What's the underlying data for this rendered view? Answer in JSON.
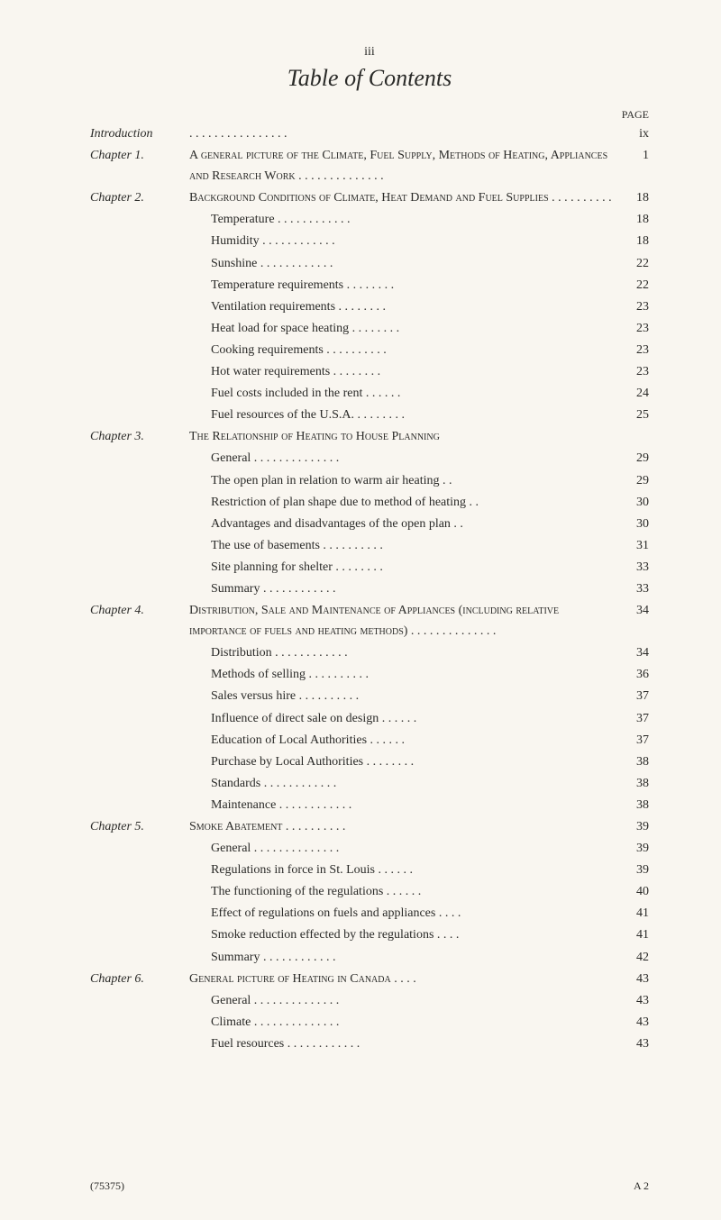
{
  "header": {
    "roman": "iii",
    "title": "Table of Contents",
    "page_label": "PAGE"
  },
  "rows": [
    {
      "left": "Introduction",
      "mid": ". .   . .    . .    . .    . .    . .    . .    . .",
      "page": "ix",
      "cls": ""
    },
    {
      "left": "Chapter 1.",
      "mid": "A general picture of the Climate, Fuel Supply, Methods of Heating, Appliances and Research Work    . .    . .    . .    . .    . .    . .    . .",
      "page": "1",
      "cls": "sc"
    },
    {
      "left": "Chapter 2.",
      "mid": "Background Conditions of Climate, Heat Demand and Fuel Supplies    . .    . .    . .    . .    . .",
      "page": "18",
      "cls": "sc"
    },
    {
      "left": "",
      "mid": "Temperature    . .    . .    . .    . .    . .    . .",
      "page": "18",
      "cls": "toc-sub"
    },
    {
      "left": "",
      "mid": "Humidity        . .    . .    . .    . .  . .     . .",
      "page": "18",
      "cls": "toc-sub"
    },
    {
      "left": "",
      "mid": "Sunshine        . .    . .    . .    . .    . .    . .",
      "page": "22",
      "cls": "toc-sub"
    },
    {
      "left": "",
      "mid": "Temperature requirements    . .    . .    . .    . .",
      "page": "22",
      "cls": "toc-sub"
    },
    {
      "left": "",
      "mid": "Ventilation requirements     . .    . .    . .    . .",
      "page": "23",
      "cls": "toc-sub"
    },
    {
      "left": "",
      "mid": "Heat load for space heating    . .    . .    . .    . .",
      "page": "23",
      "cls": "toc-sub"
    },
    {
      "left": "",
      "mid": "Cooking requirements  . .    . .    . .    . .    . .",
      "page": "23",
      "cls": "toc-sub"
    },
    {
      "left": "",
      "mid": "Hot water requirements      . .    . .    . .    . .",
      "page": "23",
      "cls": "toc-sub"
    },
    {
      "left": "",
      "mid": "Fuel costs included in the rent    . .    . .    . .",
      "page": "24",
      "cls": "toc-sub"
    },
    {
      "left": "",
      "mid": "Fuel resources of the U.S.A.  . .    . .    . .    . .",
      "page": "25",
      "cls": "toc-sub"
    },
    {
      "left": "Chapter 3.",
      "mid": "The Relationship of Heating to House Planning",
      "page": "",
      "cls": "sc"
    },
    {
      "left": "",
      "mid": "General  . .    . .    . .    . .    . .    . .    . .",
      "page": "29",
      "cls": "toc-sub"
    },
    {
      "left": "",
      "mid": "The open plan in relation to warm air heating    . .",
      "page": "29",
      "cls": "toc-sub"
    },
    {
      "left": "",
      "mid": "Restriction of plan shape due to method of heating . .",
      "page": "30",
      "cls": "toc-sub"
    },
    {
      "left": "",
      "mid": "Advantages and disadvantages of the open plan    . .",
      "page": "30",
      "cls": "toc-sub"
    },
    {
      "left": "",
      "mid": "The use of basements  . .    . .    . .    . .    . .",
      "page": "31",
      "cls": "toc-sub"
    },
    {
      "left": "",
      "mid": "Site planning for shelter     . .    . .    . .    . .",
      "page": "33",
      "cls": "toc-sub"
    },
    {
      "left": "",
      "mid": "Summary        . .    . .    . .    . .    . .    . .",
      "page": "33",
      "cls": "toc-sub"
    },
    {
      "left": "Chapter 4.",
      "mid": "Distribution, Sale and Maintenance of Appliances (including relative importance of fuels and heating methods)  . .    . .    . .    . .    . .    . .    . .",
      "page": "34",
      "cls": "sc"
    },
    {
      "left": "",
      "mid": "Distribution     . .    . .    . .    . .    . .    . .",
      "page": "34",
      "cls": "toc-sub"
    },
    {
      "left": "",
      "mid": "Methods of selling      . .    . .    . .    . .    . .",
      "page": "36",
      "cls": "toc-sub"
    },
    {
      "left": "",
      "mid": "Sales versus hire       . .    . .    . .    . .    . .",
      "page": "37",
      "cls": "toc-sub"
    },
    {
      "left": "",
      "mid": "Influence of direct sale on design    . .    . .    . .",
      "page": "37",
      "cls": "toc-sub"
    },
    {
      "left": "",
      "mid": "Education of Local Authorities     . .    . .    . .",
      "page": "37",
      "cls": "toc-sub"
    },
    {
      "left": "",
      "mid": "Purchase by Local Authorities . .    . .    . .    . .",
      "page": "38",
      "cls": "toc-sub"
    },
    {
      "left": "",
      "mid": "Standards       . .    . .    . .    . .    . .    . .",
      "page": "38",
      "cls": "toc-sub"
    },
    {
      "left": "",
      "mid": "Maintenance     . .    . .    . .    . .    . .    . .",
      "page": "38",
      "cls": "toc-sub"
    },
    {
      "left": "Chapter 5.",
      "mid": "Smoke Abatement      . .    . .    . .    . .    . .",
      "page": "39",
      "cls": "sc"
    },
    {
      "left": "",
      "mid": "General  . .    . .    . .    . .    . .    . .    . .",
      "page": "39",
      "cls": "toc-sub"
    },
    {
      "left": "",
      "mid": "Regulations in force in St. Louis    . .    . .    . .",
      "page": "39",
      "cls": "toc-sub"
    },
    {
      "left": "",
      "mid": "The functioning of the regulations    . .    . .    . .",
      "page": "40",
      "cls": "toc-sub"
    },
    {
      "left": "",
      "mid": "Effect of regulations on fuels and appliances . .    . .",
      "page": "41",
      "cls": "toc-sub"
    },
    {
      "left": "",
      "mid": "Smoke reduction effected by the regulations . .    . .",
      "page": "41",
      "cls": "toc-sub"
    },
    {
      "left": "",
      "mid": "Summary        . .    . .    . .    . .    . .    . .",
      "page": "42",
      "cls": "toc-sub"
    },
    {
      "left": "Chapter 6.",
      "mid": "General picture of Heating in Canada   . .    . .",
      "page": "43",
      "cls": "sc"
    },
    {
      "left": "",
      "mid": "General  . .    . .    . .    . .    . .    . .    . .",
      "page": "43",
      "cls": "toc-sub"
    },
    {
      "left": "",
      "mid": "Climate  . .    . .    . .    . .    . .    . .    . .",
      "page": "43",
      "cls": "toc-sub"
    },
    {
      "left": "",
      "mid": "Fuel resources  . .    . .    . .    . .    . .    . .",
      "page": "43",
      "cls": "toc-sub"
    }
  ],
  "footer": {
    "left": "(75375)",
    "right": "A 2"
  }
}
